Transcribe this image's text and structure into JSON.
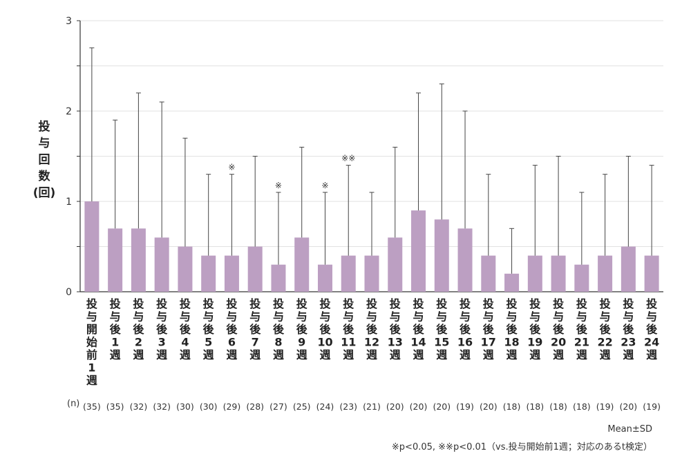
{
  "chart_data": {
    "type": "bar",
    "ylabel": [
      "投",
      "与",
      "回",
      "数",
      "(回)"
    ],
    "ylim": [
      0,
      3
    ],
    "yticks": [
      "0",
      "1",
      "2",
      "3"
    ],
    "grid": true,
    "categories": [
      "投与開始前1週",
      "投与後1週",
      "投与後2週",
      "投与後3週",
      "投与後4週",
      "投与後5週",
      "投与後6週",
      "投与後7週",
      "投与後8週",
      "投与後9週",
      "投与後10週",
      "投与後11週",
      "投与後12週",
      "投与後13週",
      "投与後14週",
      "投与後15週",
      "投与後16週",
      "投与後17週",
      "投与後18週",
      "投与後19週",
      "投与後20週",
      "投与後21週",
      "投与後22週",
      "投与後23週",
      "投与後24週"
    ],
    "values": [
      1.0,
      0.7,
      0.7,
      0.6,
      0.5,
      0.4,
      0.4,
      0.5,
      0.3,
      0.6,
      0.3,
      0.4,
      0.4,
      0.6,
      0.9,
      0.8,
      0.7,
      0.4,
      0.2,
      0.4,
      0.4,
      0.3,
      0.4,
      0.5,
      0.4
    ],
    "sd_upper": [
      2.7,
      1.9,
      2.2,
      2.1,
      1.7,
      1.3,
      1.3,
      1.5,
      1.1,
      1.6,
      1.1,
      1.4,
      1.1,
      1.6,
      2.2,
      2.3,
      2.0,
      1.3,
      0.7,
      1.4,
      1.5,
      1.1,
      1.3,
      1.5,
      1.4
    ],
    "significance": [
      "",
      "",
      "",
      "",
      "",
      "",
      "※",
      "",
      "※",
      "",
      "※",
      "※※",
      "",
      "",
      "",
      "",
      "",
      "",
      "",
      "",
      "",
      "",
      "",
      "",
      ""
    ],
    "n_prefix": "(n)",
    "n_values": [
      "(35)",
      "(35)",
      "(32)",
      "(32)",
      "(30)",
      "(30)",
      "(29)",
      "(28)",
      "(27)",
      "(25)",
      "(24)",
      "(23)",
      "(21)",
      "(20)",
      "(20)",
      "(20)",
      "(19)",
      "(20)",
      "(18)",
      "(18)",
      "(18)",
      "(18)",
      "(19)",
      "(20)",
      "(19)"
    ],
    "bar_color": "#bc9fc2",
    "errorbar_color": "#444444"
  },
  "notes": {
    "mean_sd": "Mean±SD",
    "significance_note": "※p<0.05, ※※p<0.01（vs.投与開始前1週；対応のあるt検定）"
  }
}
